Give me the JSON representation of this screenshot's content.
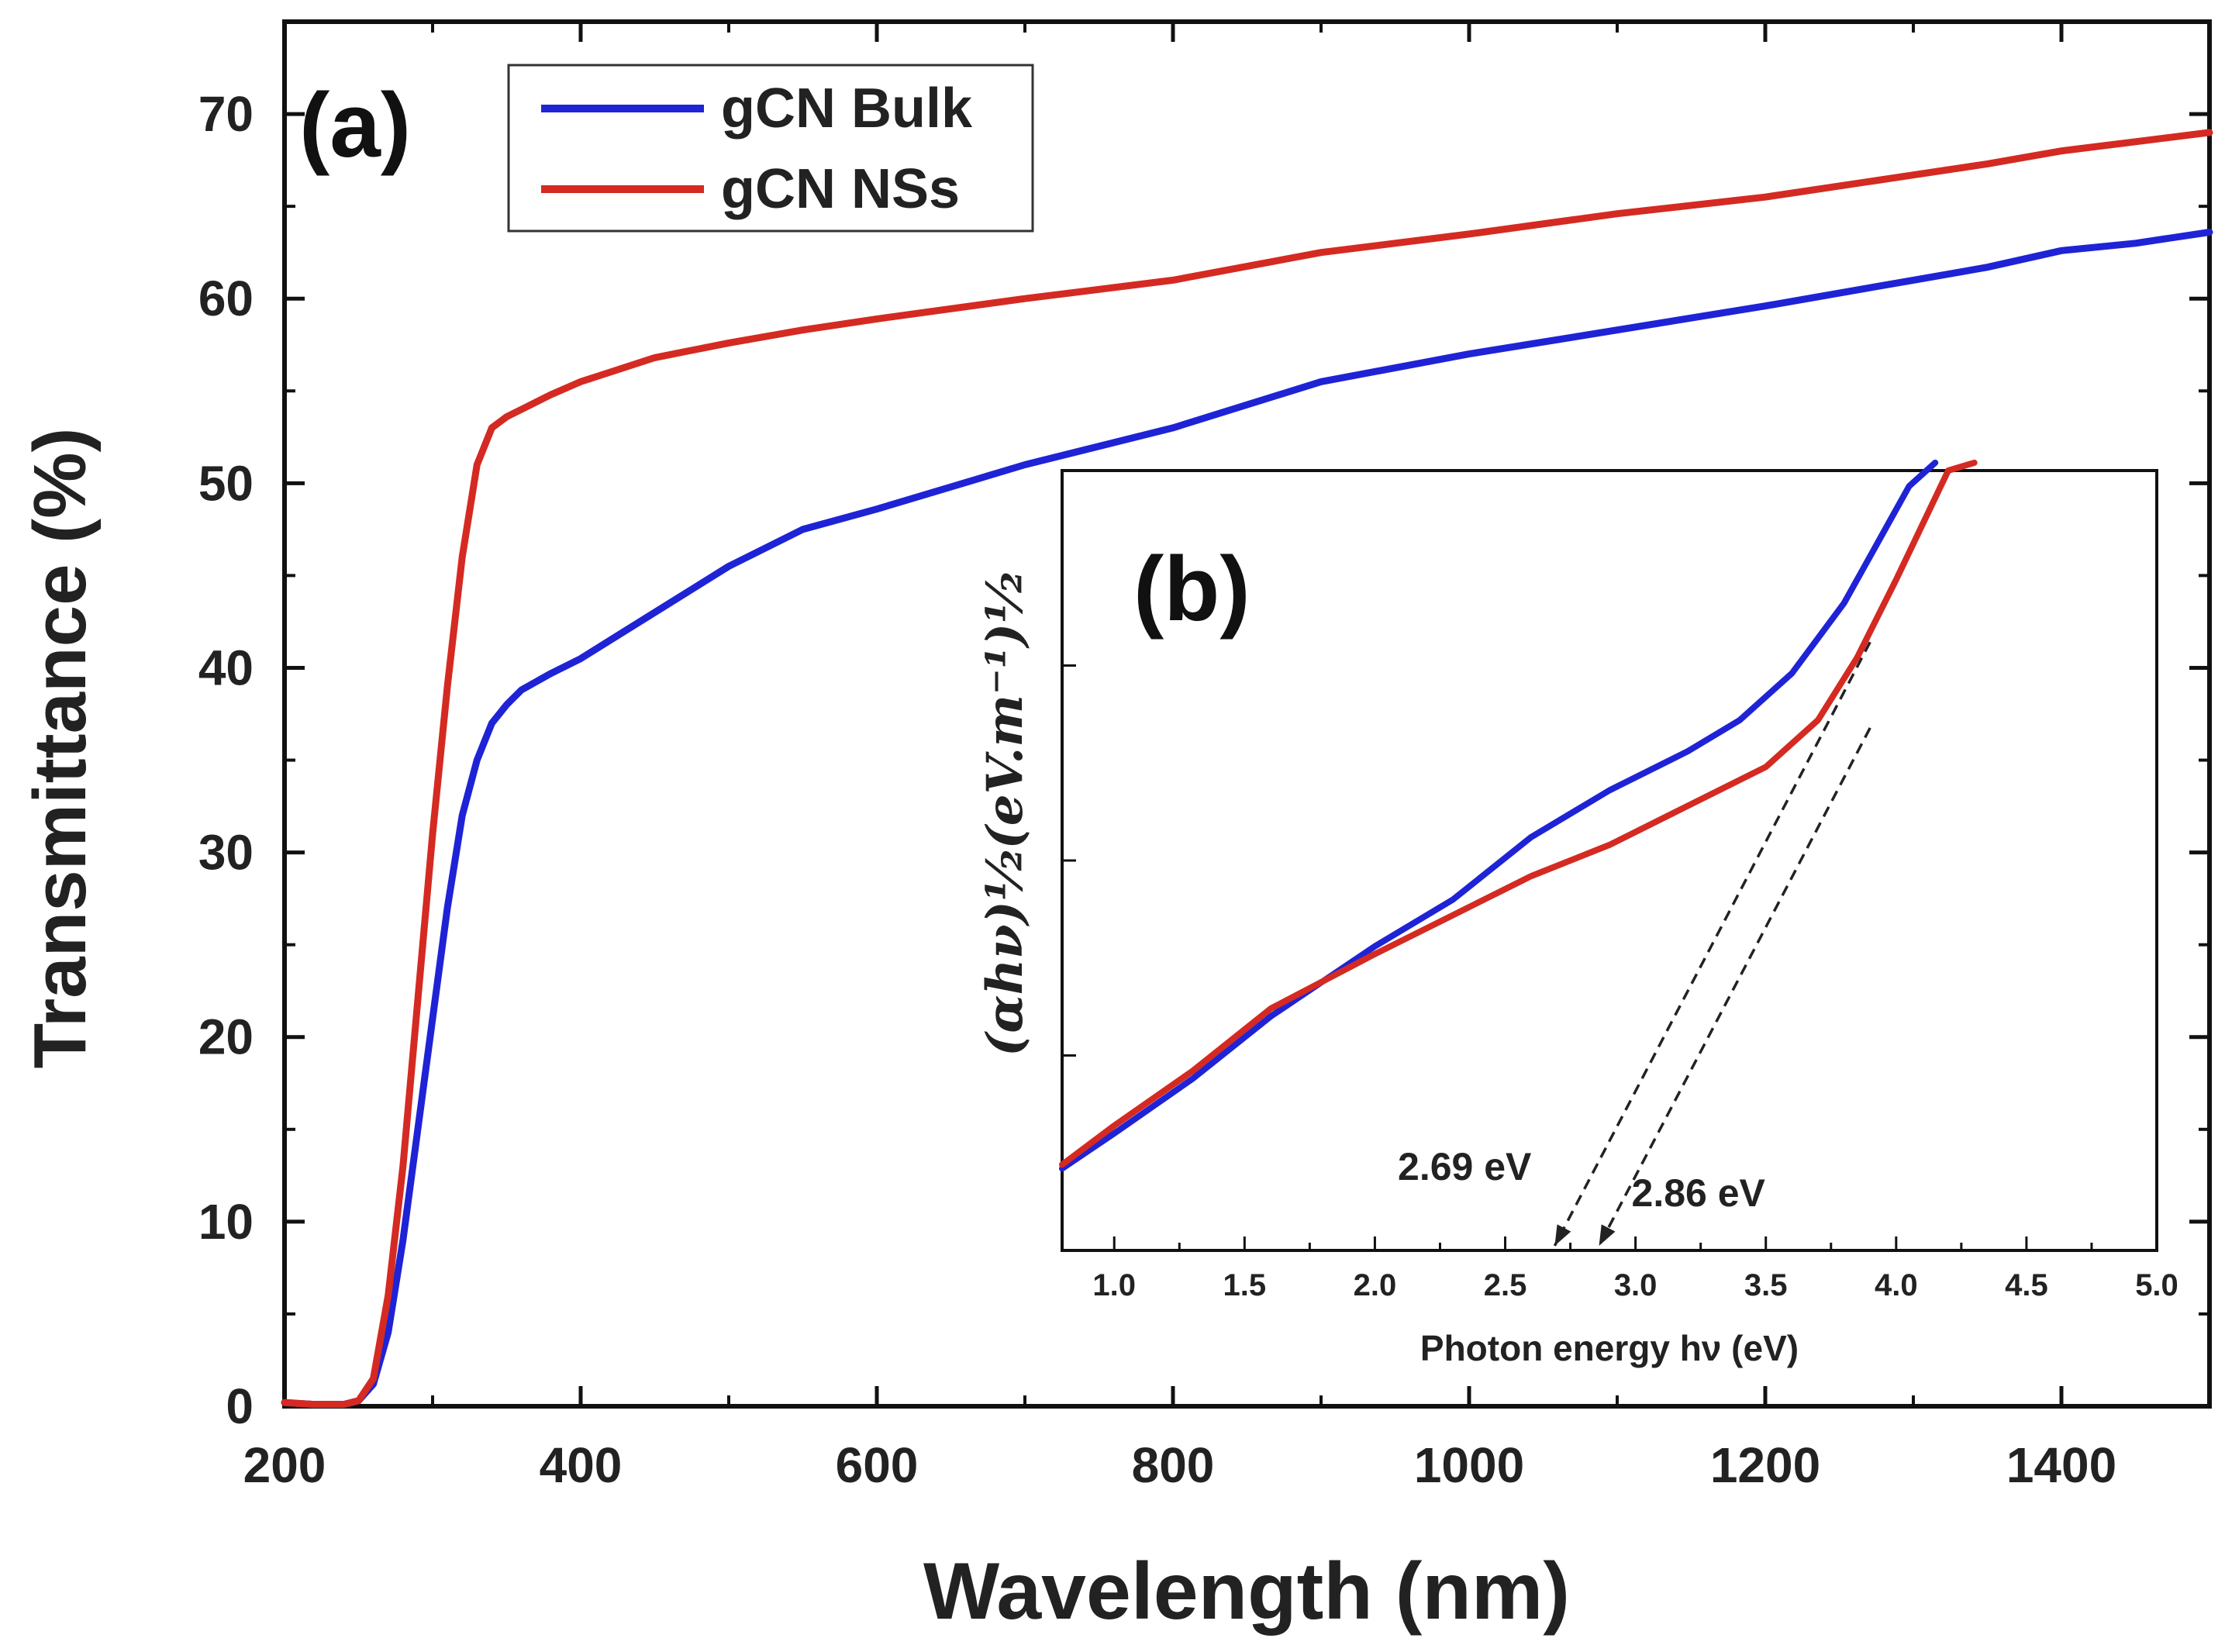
{
  "chart_data": [
    {
      "panel": "(a)",
      "type": "line",
      "xlabel": "Wavelength (nm)",
      "ylabel": "Transmittance (%)",
      "xlim": [
        200,
        1500
      ],
      "ylim": [
        0,
        75
      ],
      "xticks": [
        200,
        400,
        600,
        800,
        1000,
        1200,
        1400
      ],
      "yticks": [
        0,
        10,
        20,
        30,
        40,
        50,
        60,
        70
      ],
      "legend_position": "top-left",
      "series": [
        {
          "name": "gCN Bulk",
          "color": "#1f23d6",
          "x": [
            200,
            220,
            240,
            250,
            260,
            270,
            280,
            290,
            300,
            310,
            320,
            330,
            340,
            350,
            360,
            380,
            400,
            450,
            500,
            550,
            600,
            700,
            800,
            900,
            1000,
            1100,
            1200,
            1300,
            1350,
            1400,
            1450,
            1500
          ],
          "y": [
            0.2,
            0.1,
            0.1,
            0.3,
            1.2,
            4,
            9,
            15,
            21,
            27,
            32,
            35,
            37,
            38,
            38.8,
            39.7,
            40.5,
            43,
            45.5,
            47.5,
            48.6,
            51,
            53,
            55.5,
            57,
            58.3,
            59.6,
            61,
            61.7,
            62.6,
            63,
            63.6
          ]
        },
        {
          "name": "gCN NSs",
          "color": "#d42a22",
          "x": [
            200,
            220,
            240,
            250,
            260,
            270,
            280,
            290,
            300,
            310,
            320,
            330,
            340,
            350,
            360,
            380,
            400,
            450,
            500,
            550,
            600,
            700,
            800,
            900,
            1000,
            1100,
            1200,
            1300,
            1350,
            1400,
            1450,
            1500
          ],
          "y": [
            0.2,
            0.1,
            0.1,
            0.3,
            1.5,
            6,
            13,
            22,
            31,
            39,
            46,
            51,
            53,
            53.6,
            54,
            54.8,
            55.5,
            56.8,
            57.6,
            58.3,
            58.9,
            60,
            61,
            62.5,
            63.5,
            64.6,
            65.5,
            66.7,
            67.3,
            68,
            68.5,
            69
          ]
        }
      ]
    },
    {
      "panel": "(b)",
      "type": "line",
      "xlabel": "Photon energy hν (eV)",
      "ylabel": "(αhν)¹⁄₂(eV.m⁻¹)¹⁄₂",
      "xlim": [
        0.8,
        5.0
      ],
      "ylim": [
        0,
        10
      ],
      "xticks": [
        1.0,
        1.5,
        2.0,
        2.5,
        3.0,
        3.5,
        4.0,
        4.5,
        5.0
      ],
      "xtick_labels": [
        "1.0",
        "1.5",
        "2.0",
        "2.5",
        "3.0",
        "3.5",
        "4.0",
        "4.5",
        "5.0"
      ],
      "y_tick_count": 3,
      "series": [
        {
          "name": "gCN Bulk",
          "color": "#1f23d6",
          "x": [
            0.8,
            1.0,
            1.3,
            1.6,
            2.0,
            2.3,
            2.6,
            2.9,
            3.2,
            3.4,
            3.6,
            3.8,
            3.95,
            4.05,
            4.15
          ],
          "y": [
            1.05,
            1.5,
            2.2,
            3.0,
            3.9,
            4.5,
            5.3,
            5.9,
            6.4,
            6.8,
            7.4,
            8.3,
            9.2,
            9.8,
            10.5
          ]
        },
        {
          "name": "gCN NSs",
          "color": "#d42a22",
          "x": [
            0.8,
            1.0,
            1.3,
            1.6,
            2.0,
            2.3,
            2.6,
            2.9,
            3.2,
            3.5,
            3.7,
            3.85,
            4.0,
            4.1,
            4.2,
            4.3
          ],
          "y": [
            1.1,
            1.6,
            2.3,
            3.1,
            3.8,
            4.3,
            4.8,
            5.2,
            5.7,
            6.2,
            6.8,
            7.6,
            8.6,
            9.3,
            10.0,
            10.7
          ]
        }
      ],
      "tangent_lines": [
        {
          "x": [
            2.69,
            3.9
          ],
          "y": [
            0,
            7.8
          ]
        },
        {
          "x": [
            2.86,
            3.9
          ],
          "y": [
            0,
            6.7
          ]
        }
      ],
      "annotations": [
        {
          "text": "2.69 eV",
          "x": 2.69
        },
        {
          "text": "2.86 eV",
          "x": 2.86
        }
      ]
    }
  ]
}
